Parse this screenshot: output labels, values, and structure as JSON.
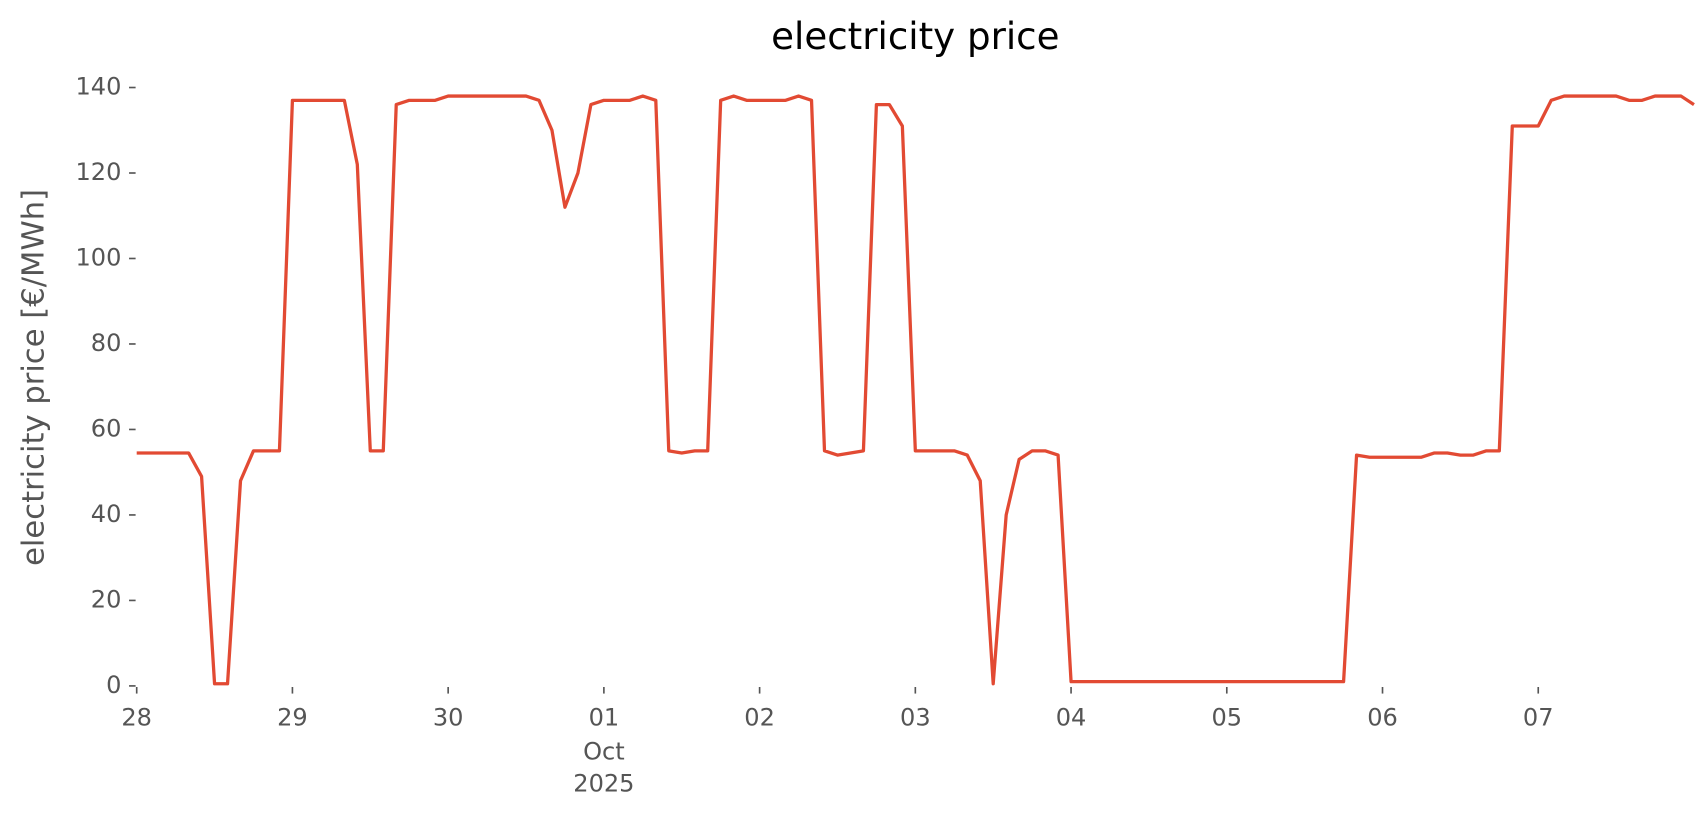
{
  "chart_data": {
    "type": "line",
    "title": "electricity price",
    "ylabel": "electricity price [€/MWh]",
    "color": "#e24a33",
    "x": [
      "2025-09-28T00:00",
      "2025-09-28T02:00",
      "2025-09-28T04:00",
      "2025-09-28T06:00",
      "2025-09-28T08:00",
      "2025-09-28T10:00",
      "2025-09-28T12:00",
      "2025-09-28T14:00",
      "2025-09-28T16:00",
      "2025-09-28T18:00",
      "2025-09-28T20:00",
      "2025-09-28T22:00",
      "2025-09-29T00:00",
      "2025-09-29T02:00",
      "2025-09-29T04:00",
      "2025-09-29T06:00",
      "2025-09-29T08:00",
      "2025-09-29T10:00",
      "2025-09-29T12:00",
      "2025-09-29T14:00",
      "2025-09-29T16:00",
      "2025-09-29T18:00",
      "2025-09-29T20:00",
      "2025-09-29T22:00",
      "2025-09-30T00:00",
      "2025-09-30T02:00",
      "2025-09-30T04:00",
      "2025-09-30T06:00",
      "2025-09-30T08:00",
      "2025-09-30T10:00",
      "2025-09-30T12:00",
      "2025-09-30T14:00",
      "2025-09-30T16:00",
      "2025-09-30T18:00",
      "2025-09-30T20:00",
      "2025-09-30T22:00",
      "2025-10-01T00:00",
      "2025-10-01T02:00",
      "2025-10-01T04:00",
      "2025-10-01T06:00",
      "2025-10-01T08:00",
      "2025-10-01T10:00",
      "2025-10-01T12:00",
      "2025-10-01T14:00",
      "2025-10-01T16:00",
      "2025-10-01T18:00",
      "2025-10-01T20:00",
      "2025-10-01T22:00",
      "2025-10-02T00:00",
      "2025-10-02T02:00",
      "2025-10-02T04:00",
      "2025-10-02T06:00",
      "2025-10-02T08:00",
      "2025-10-02T10:00",
      "2025-10-02T12:00",
      "2025-10-02T14:00",
      "2025-10-02T16:00",
      "2025-10-02T18:00",
      "2025-10-02T20:00",
      "2025-10-02T22:00",
      "2025-10-03T00:00",
      "2025-10-03T02:00",
      "2025-10-03T04:00",
      "2025-10-03T06:00",
      "2025-10-03T08:00",
      "2025-10-03T10:00",
      "2025-10-03T12:00",
      "2025-10-03T14:00",
      "2025-10-03T16:00",
      "2025-10-03T18:00",
      "2025-10-03T20:00",
      "2025-10-03T22:00",
      "2025-10-04T00:00",
      "2025-10-04T02:00",
      "2025-10-04T04:00",
      "2025-10-04T06:00",
      "2025-10-04T08:00",
      "2025-10-04T10:00",
      "2025-10-04T12:00",
      "2025-10-04T14:00",
      "2025-10-04T16:00",
      "2025-10-04T18:00",
      "2025-10-04T20:00",
      "2025-10-04T22:00",
      "2025-10-05T00:00",
      "2025-10-05T02:00",
      "2025-10-05T04:00",
      "2025-10-05T06:00",
      "2025-10-05T08:00",
      "2025-10-05T10:00",
      "2025-10-05T12:00",
      "2025-10-05T14:00",
      "2025-10-05T16:00",
      "2025-10-05T18:00",
      "2025-10-05T20:00",
      "2025-10-05T22:00",
      "2025-10-06T00:00",
      "2025-10-06T02:00",
      "2025-10-06T04:00",
      "2025-10-06T06:00",
      "2025-10-06T08:00",
      "2025-10-06T10:00",
      "2025-10-06T12:00",
      "2025-10-06T14:00",
      "2025-10-06T16:00",
      "2025-10-06T18:00",
      "2025-10-06T20:00",
      "2025-10-06T22:00",
      "2025-10-07T00:00",
      "2025-10-07T02:00",
      "2025-10-07T04:00",
      "2025-10-07T06:00",
      "2025-10-07T08:00",
      "2025-10-07T10:00",
      "2025-10-07T12:00",
      "2025-10-07T14:00",
      "2025-10-07T16:00",
      "2025-10-07T18:00",
      "2025-10-07T20:00",
      "2025-10-07T22:00",
      "2025-10-08T00:00"
    ],
    "values": [
      54.5,
      54.5,
      54.5,
      54.5,
      54.5,
      49,
      0.5,
      0.5,
      48,
      55,
      55,
      55,
      137,
      137,
      137,
      137,
      137,
      122,
      55,
      55,
      136,
      137,
      137,
      137,
      138,
      138,
      138,
      138,
      138,
      138,
      138,
      137,
      130,
      112,
      120,
      136,
      137,
      137,
      137,
      138,
      137,
      55,
      54.5,
      55,
      55,
      137,
      138,
      137,
      137,
      137,
      137,
      138,
      137,
      55,
      54,
      54.5,
      55,
      136,
      136,
      131,
      55,
      55,
      55,
      55,
      54,
      48,
      0.5,
      40,
      53,
      55,
      55,
      54,
      1,
      1,
      1,
      1,
      1,
      1,
      1,
      1,
      1,
      1,
      1,
      1,
      1,
      1,
      1,
      1,
      1,
      1,
      1,
      1,
      1,
      1,
      54,
      53.5,
      53.5,
      53.5,
      53.5,
      53.5,
      54.5,
      54.5,
      54,
      54,
      55,
      55,
      131,
      131,
      131,
      137,
      138,
      138,
      138,
      138,
      138,
      137,
      137,
      138,
      138,
      138,
      136
    ],
    "xlim": [
      "2025-09-28T00:00",
      "2025-10-08T00:00"
    ],
    "xticks": [
      {
        "value": "2025-09-28T00:00",
        "label": "28"
      },
      {
        "value": "2025-09-29T00:00",
        "label": "29"
      },
      {
        "value": "2025-09-30T00:00",
        "label": "30"
      },
      {
        "value": "2025-10-01T00:00",
        "label": "01"
      },
      {
        "value": "2025-10-02T00:00",
        "label": "02"
      },
      {
        "value": "2025-10-03T00:00",
        "label": "03"
      },
      {
        "value": "2025-10-04T00:00",
        "label": "04"
      },
      {
        "value": "2025-10-05T00:00",
        "label": "05"
      },
      {
        "value": "2025-10-06T00:00",
        "label": "06"
      },
      {
        "value": "2025-10-07T00:00",
        "label": "07"
      }
    ],
    "x_month_label": "Oct",
    "x_year_label": "2025",
    "ylim": [
      0,
      140
    ],
    "yticks": [
      0,
      20,
      40,
      60,
      80,
      100,
      120,
      140
    ]
  }
}
